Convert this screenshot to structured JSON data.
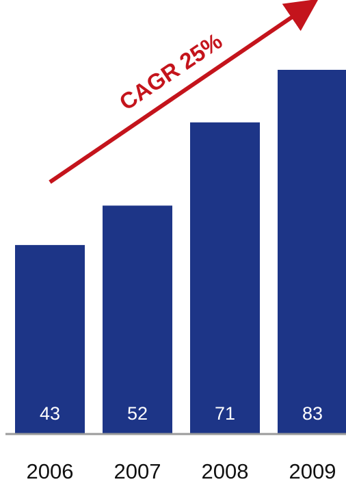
{
  "chart_data": {
    "type": "bar",
    "categories": [
      "2006",
      "2007",
      "2008",
      "2009"
    ],
    "values": [
      43,
      52,
      71,
      83
    ],
    "title": "",
    "xlabel": "",
    "ylabel": "",
    "ylim": [
      0,
      83
    ],
    "grid": false,
    "legend": "none",
    "data_labels": true,
    "annotation": {
      "text": "CAGR 25%"
    },
    "colors": {
      "bar": "#1d3587",
      "bar_value_text": "#ffffff",
      "axis": "#9a9a9a",
      "annotation": "#c4141c",
      "tick_text": "#111111"
    }
  }
}
